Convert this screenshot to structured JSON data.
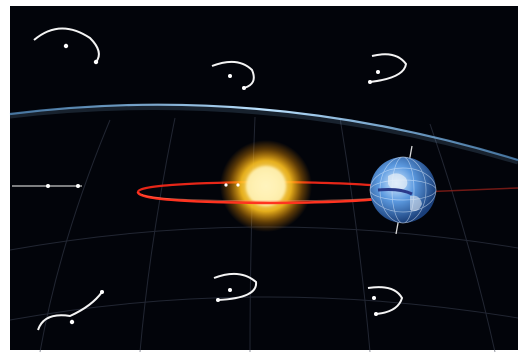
{
  "scene": {
    "subject": "sun-earth-system-with-orbit-and-parallax-paths",
    "colors": {
      "frame": "#ffffff",
      "space": "#02040a",
      "horizon": "#8fd0ff",
      "orbit": "#ff2a1a",
      "sun_core": "#fff6c8",
      "sun_glow": "#ffb400",
      "earth_ocean": "#3f7fd0",
      "earth_land": "#c9d8e8",
      "star_path": "#f4f4f4",
      "grid": "#4a4f60"
    },
    "icons": {
      "sun": "sun-icon",
      "earth": "earth-globe-icon",
      "star": "star-icon"
    },
    "parallax_star_count": 9
  }
}
